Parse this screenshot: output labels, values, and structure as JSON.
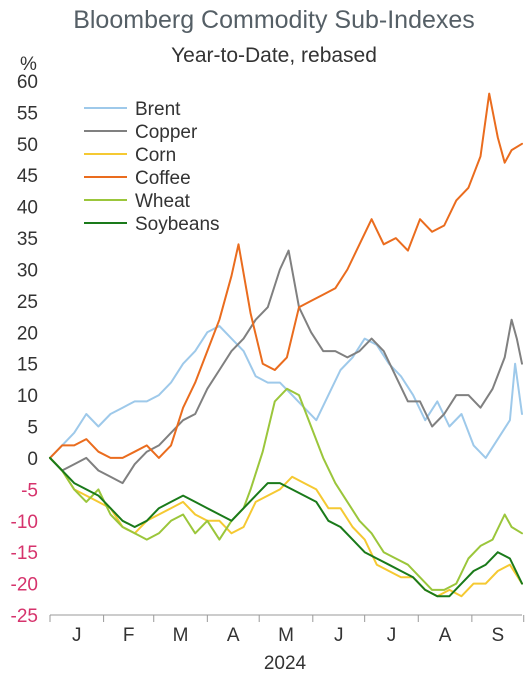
{
  "chart_data": {
    "type": "line",
    "title": "Bloomberg Commodity Sub-Indexes",
    "subtitle": "Year-to-Date, rebased",
    "yunit": "%",
    "ylim": [
      -25,
      60
    ],
    "yticks": [
      60,
      55,
      50,
      45,
      40,
      35,
      30,
      25,
      20,
      15,
      10,
      5,
      0,
      -5,
      -10,
      -15,
      -20,
      -25
    ],
    "negative_tick_color": "#d6336c",
    "positive_tick_color": "#333333",
    "x_range": [
      "2024-01-01",
      "2024-09-30"
    ],
    "month_labels": [
      "J",
      "F",
      "M",
      "A",
      "M",
      "J",
      "J",
      "A",
      "S"
    ],
    "year_label": "2024",
    "legend_position": "top-left",
    "series": [
      {
        "name": "Brent",
        "color": "#9ec9ea",
        "points": [
          [
            "2024-01-01",
            0
          ],
          [
            "2024-01-08",
            2
          ],
          [
            "2024-01-15",
            4
          ],
          [
            "2024-01-22",
            7
          ],
          [
            "2024-01-29",
            5
          ],
          [
            "2024-02-05",
            7
          ],
          [
            "2024-02-12",
            8
          ],
          [
            "2024-02-19",
            9
          ],
          [
            "2024-02-26",
            9
          ],
          [
            "2024-03-04",
            10
          ],
          [
            "2024-03-11",
            12
          ],
          [
            "2024-03-18",
            15
          ],
          [
            "2024-03-25",
            17
          ],
          [
            "2024-04-01",
            20
          ],
          [
            "2024-04-08",
            21
          ],
          [
            "2024-04-15",
            19
          ],
          [
            "2024-04-22",
            17
          ],
          [
            "2024-04-29",
            13
          ],
          [
            "2024-05-06",
            12
          ],
          [
            "2024-05-13",
            12
          ],
          [
            "2024-05-20",
            10
          ],
          [
            "2024-05-27",
            8
          ],
          [
            "2024-06-03",
            6
          ],
          [
            "2024-06-10",
            10
          ],
          [
            "2024-06-17",
            14
          ],
          [
            "2024-06-24",
            16
          ],
          [
            "2024-07-01",
            19
          ],
          [
            "2024-07-08",
            18
          ],
          [
            "2024-07-15",
            15
          ],
          [
            "2024-07-22",
            13
          ],
          [
            "2024-07-29",
            10
          ],
          [
            "2024-08-05",
            6
          ],
          [
            "2024-08-12",
            9
          ],
          [
            "2024-08-19",
            5
          ],
          [
            "2024-08-26",
            7
          ],
          [
            "2024-09-02",
            2
          ],
          [
            "2024-09-09",
            0
          ],
          [
            "2024-09-16",
            3
          ],
          [
            "2024-09-23",
            6
          ],
          [
            "2024-09-26",
            15
          ],
          [
            "2024-09-30",
            7
          ]
        ]
      },
      {
        "name": "Copper",
        "color": "#808080",
        "points": [
          [
            "2024-01-01",
            0
          ],
          [
            "2024-01-08",
            -2
          ],
          [
            "2024-01-15",
            -1
          ],
          [
            "2024-01-22",
            0
          ],
          [
            "2024-01-29",
            -2
          ],
          [
            "2024-02-05",
            -3
          ],
          [
            "2024-02-12",
            -4
          ],
          [
            "2024-02-19",
            -1
          ],
          [
            "2024-02-26",
            1
          ],
          [
            "2024-03-04",
            2
          ],
          [
            "2024-03-11",
            4
          ],
          [
            "2024-03-18",
            6
          ],
          [
            "2024-03-25",
            7
          ],
          [
            "2024-04-01",
            11
          ],
          [
            "2024-04-08",
            14
          ],
          [
            "2024-04-15",
            17
          ],
          [
            "2024-04-22",
            19
          ],
          [
            "2024-04-29",
            22
          ],
          [
            "2024-05-06",
            24
          ],
          [
            "2024-05-13",
            30
          ],
          [
            "2024-05-18",
            33
          ],
          [
            "2024-05-24",
            24
          ],
          [
            "2024-05-31",
            20
          ],
          [
            "2024-06-07",
            17
          ],
          [
            "2024-06-14",
            17
          ],
          [
            "2024-06-21",
            16
          ],
          [
            "2024-06-28",
            17
          ],
          [
            "2024-07-05",
            19
          ],
          [
            "2024-07-12",
            17
          ],
          [
            "2024-07-19",
            13
          ],
          [
            "2024-07-26",
            9
          ],
          [
            "2024-08-02",
            9
          ],
          [
            "2024-08-09",
            5
          ],
          [
            "2024-08-16",
            7
          ],
          [
            "2024-08-23",
            10
          ],
          [
            "2024-08-30",
            10
          ],
          [
            "2024-09-06",
            8
          ],
          [
            "2024-09-13",
            11
          ],
          [
            "2024-09-20",
            16
          ],
          [
            "2024-09-24",
            22
          ],
          [
            "2024-09-27",
            19
          ],
          [
            "2024-09-30",
            15
          ]
        ]
      },
      {
        "name": "Corn",
        "color": "#f5c932",
        "points": [
          [
            "2024-01-01",
            0
          ],
          [
            "2024-01-08",
            -2
          ],
          [
            "2024-01-15",
            -5
          ],
          [
            "2024-01-22",
            -6
          ],
          [
            "2024-01-29",
            -7
          ],
          [
            "2024-02-05",
            -8
          ],
          [
            "2024-02-12",
            -11
          ],
          [
            "2024-02-19",
            -12
          ],
          [
            "2024-02-26",
            -10
          ],
          [
            "2024-03-04",
            -9
          ],
          [
            "2024-03-11",
            -8
          ],
          [
            "2024-03-18",
            -7
          ],
          [
            "2024-03-25",
            -9
          ],
          [
            "2024-04-01",
            -10
          ],
          [
            "2024-04-08",
            -10
          ],
          [
            "2024-04-15",
            -12
          ],
          [
            "2024-04-22",
            -11
          ],
          [
            "2024-04-29",
            -7
          ],
          [
            "2024-05-06",
            -6
          ],
          [
            "2024-05-13",
            -5
          ],
          [
            "2024-05-20",
            -3
          ],
          [
            "2024-05-27",
            -4
          ],
          [
            "2024-06-03",
            -5
          ],
          [
            "2024-06-10",
            -8
          ],
          [
            "2024-06-17",
            -8
          ],
          [
            "2024-06-24",
            -11
          ],
          [
            "2024-07-01",
            -13
          ],
          [
            "2024-07-08",
            -17
          ],
          [
            "2024-07-15",
            -18
          ],
          [
            "2024-07-22",
            -19
          ],
          [
            "2024-07-29",
            -19
          ],
          [
            "2024-08-05",
            -21
          ],
          [
            "2024-08-12",
            -22
          ],
          [
            "2024-08-19",
            -21
          ],
          [
            "2024-08-26",
            -22
          ],
          [
            "2024-09-02",
            -20
          ],
          [
            "2024-09-09",
            -20
          ],
          [
            "2024-09-16",
            -18
          ],
          [
            "2024-09-23",
            -17
          ],
          [
            "2024-09-30",
            -20
          ]
        ]
      },
      {
        "name": "Coffee",
        "color": "#ea6c1e",
        "points": [
          [
            "2024-01-01",
            0
          ],
          [
            "2024-01-08",
            2
          ],
          [
            "2024-01-15",
            2
          ],
          [
            "2024-01-22",
            3
          ],
          [
            "2024-01-29",
            1
          ],
          [
            "2024-02-05",
            0
          ],
          [
            "2024-02-12",
            0
          ],
          [
            "2024-02-19",
            1
          ],
          [
            "2024-02-26",
            2
          ],
          [
            "2024-03-04",
            0
          ],
          [
            "2024-03-11",
            2
          ],
          [
            "2024-03-18",
            8
          ],
          [
            "2024-03-25",
            12
          ],
          [
            "2024-04-01",
            17
          ],
          [
            "2024-04-08",
            22
          ],
          [
            "2024-04-15",
            29
          ],
          [
            "2024-04-19",
            34
          ],
          [
            "2024-04-26",
            23
          ],
          [
            "2024-05-03",
            15
          ],
          [
            "2024-05-10",
            14
          ],
          [
            "2024-05-17",
            16
          ],
          [
            "2024-05-24",
            24
          ],
          [
            "2024-05-31",
            25
          ],
          [
            "2024-06-07",
            26
          ],
          [
            "2024-06-14",
            27
          ],
          [
            "2024-06-21",
            30
          ],
          [
            "2024-06-28",
            34
          ],
          [
            "2024-07-05",
            38
          ],
          [
            "2024-07-12",
            34
          ],
          [
            "2024-07-19",
            35
          ],
          [
            "2024-07-26",
            33
          ],
          [
            "2024-08-02",
            38
          ],
          [
            "2024-08-09",
            36
          ],
          [
            "2024-08-16",
            37
          ],
          [
            "2024-08-23",
            41
          ],
          [
            "2024-08-30",
            43
          ],
          [
            "2024-09-06",
            48
          ],
          [
            "2024-09-11",
            58
          ],
          [
            "2024-09-16",
            51
          ],
          [
            "2024-09-20",
            47
          ],
          [
            "2024-09-24",
            49
          ],
          [
            "2024-09-30",
            50
          ]
        ]
      },
      {
        "name": "Wheat",
        "color": "#9bc63b",
        "points": [
          [
            "2024-01-01",
            0
          ],
          [
            "2024-01-08",
            -2
          ],
          [
            "2024-01-15",
            -5
          ],
          [
            "2024-01-22",
            -7
          ],
          [
            "2024-01-29",
            -5
          ],
          [
            "2024-02-05",
            -9
          ],
          [
            "2024-02-12",
            -11
          ],
          [
            "2024-02-19",
            -12
          ],
          [
            "2024-02-26",
            -13
          ],
          [
            "2024-03-04",
            -12
          ],
          [
            "2024-03-11",
            -10
          ],
          [
            "2024-03-18",
            -9
          ],
          [
            "2024-03-25",
            -12
          ],
          [
            "2024-04-01",
            -10
          ],
          [
            "2024-04-08",
            -13
          ],
          [
            "2024-04-15",
            -10
          ],
          [
            "2024-04-22",
            -8
          ],
          [
            "2024-04-26",
            -5
          ],
          [
            "2024-05-03",
            1
          ],
          [
            "2024-05-10",
            9
          ],
          [
            "2024-05-17",
            11
          ],
          [
            "2024-05-24",
            10
          ],
          [
            "2024-05-31",
            5
          ],
          [
            "2024-06-07",
            0
          ],
          [
            "2024-06-14",
            -4
          ],
          [
            "2024-06-21",
            -7
          ],
          [
            "2024-06-28",
            -10
          ],
          [
            "2024-07-05",
            -12
          ],
          [
            "2024-07-12",
            -15
          ],
          [
            "2024-07-19",
            -16
          ],
          [
            "2024-07-26",
            -17
          ],
          [
            "2024-08-02",
            -19
          ],
          [
            "2024-08-09",
            -21
          ],
          [
            "2024-08-16",
            -21
          ],
          [
            "2024-08-23",
            -20
          ],
          [
            "2024-08-30",
            -16
          ],
          [
            "2024-09-06",
            -14
          ],
          [
            "2024-09-13",
            -13
          ],
          [
            "2024-09-20",
            -9
          ],
          [
            "2024-09-24",
            -11
          ],
          [
            "2024-09-30",
            -12
          ]
        ]
      },
      {
        "name": "Soybeans",
        "color": "#1a7a1a",
        "points": [
          [
            "2024-01-01",
            0
          ],
          [
            "2024-01-08",
            -2
          ],
          [
            "2024-01-15",
            -4
          ],
          [
            "2024-01-22",
            -5
          ],
          [
            "2024-01-29",
            -6
          ],
          [
            "2024-02-05",
            -8
          ],
          [
            "2024-02-12",
            -10
          ],
          [
            "2024-02-19",
            -11
          ],
          [
            "2024-02-26",
            -10
          ],
          [
            "2024-03-04",
            -8
          ],
          [
            "2024-03-11",
            -7
          ],
          [
            "2024-03-18",
            -6
          ],
          [
            "2024-03-25",
            -7
          ],
          [
            "2024-04-01",
            -8
          ],
          [
            "2024-04-08",
            -9
          ],
          [
            "2024-04-15",
            -10
          ],
          [
            "2024-04-22",
            -8
          ],
          [
            "2024-04-29",
            -6
          ],
          [
            "2024-05-06",
            -4
          ],
          [
            "2024-05-13",
            -4
          ],
          [
            "2024-05-20",
            -5
          ],
          [
            "2024-05-27",
            -6
          ],
          [
            "2024-06-03",
            -7
          ],
          [
            "2024-06-10",
            -10
          ],
          [
            "2024-06-17",
            -11
          ],
          [
            "2024-06-24",
            -13
          ],
          [
            "2024-07-01",
            -15
          ],
          [
            "2024-07-08",
            -16
          ],
          [
            "2024-07-15",
            -17
          ],
          [
            "2024-07-22",
            -18
          ],
          [
            "2024-07-29",
            -19
          ],
          [
            "2024-08-05",
            -21
          ],
          [
            "2024-08-12",
            -22
          ],
          [
            "2024-08-19",
            -22
          ],
          [
            "2024-08-26",
            -20
          ],
          [
            "2024-09-02",
            -18
          ],
          [
            "2024-09-09",
            -17
          ],
          [
            "2024-09-16",
            -15
          ],
          [
            "2024-09-23",
            -16
          ],
          [
            "2024-09-30",
            -20
          ]
        ]
      }
    ]
  }
}
